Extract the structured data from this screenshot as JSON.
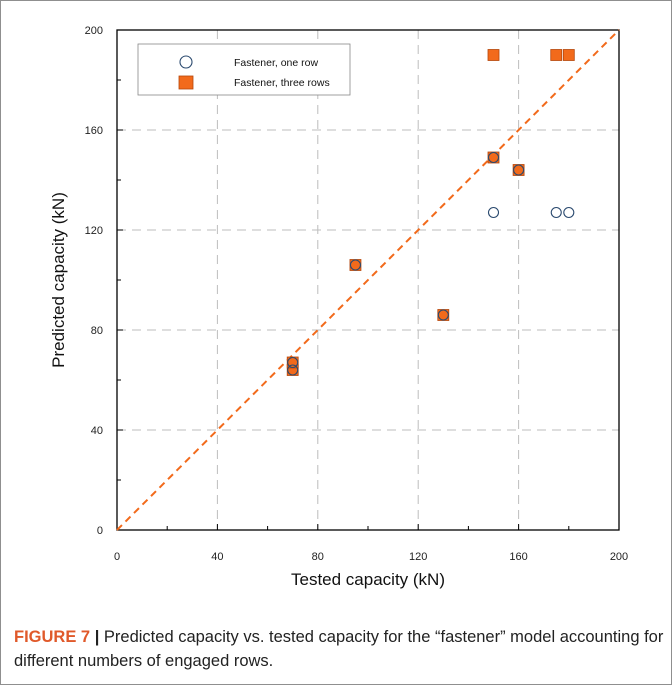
{
  "chart_data": {
    "type": "scatter",
    "xlabel": "Tested capacity (kN)",
    "ylabel": "Predicted capacity (kN)",
    "xlim": [
      0,
      200
    ],
    "ylim": [
      0,
      200
    ],
    "x_ticks": [
      0,
      40,
      80,
      120,
      160,
      200
    ],
    "y_ticks": [
      0,
      40,
      80,
      120,
      160,
      200
    ],
    "grid": true,
    "legend_position": "top-left",
    "reference_line": {
      "style": "dashed",
      "color": "#f26a1b",
      "from": [
        0,
        0
      ],
      "to": [
        200,
        200
      ]
    },
    "series": [
      {
        "name": "Fastener, one row",
        "marker": "circle-open",
        "color": "#2b4a6f",
        "points": [
          {
            "x": 70,
            "y": 64
          },
          {
            "x": 70,
            "y": 67
          },
          {
            "x": 95,
            "y": 106
          },
          {
            "x": 130,
            "y": 86
          },
          {
            "x": 150,
            "y": 127
          },
          {
            "x": 150,
            "y": 149
          },
          {
            "x": 160,
            "y": 144
          },
          {
            "x": 175,
            "y": 127
          },
          {
            "x": 180,
            "y": 127
          }
        ]
      },
      {
        "name": "Fastener, three rows",
        "marker": "square-filled",
        "color": "#f26a1b",
        "points": [
          {
            "x": 70,
            "y": 64
          },
          {
            "x": 70,
            "y": 67
          },
          {
            "x": 95,
            "y": 106
          },
          {
            "x": 130,
            "y": 86
          },
          {
            "x": 150,
            "y": 149
          },
          {
            "x": 150,
            "y": 190
          },
          {
            "x": 160,
            "y": 144
          },
          {
            "x": 175,
            "y": 190
          },
          {
            "x": 180,
            "y": 190
          }
        ]
      }
    ]
  },
  "caption": {
    "label": "FIGURE 7",
    "separator": "|",
    "text": " Predicted capacity vs. tested capacity for the “fastener” model accounting for different numbers of engaged rows."
  }
}
